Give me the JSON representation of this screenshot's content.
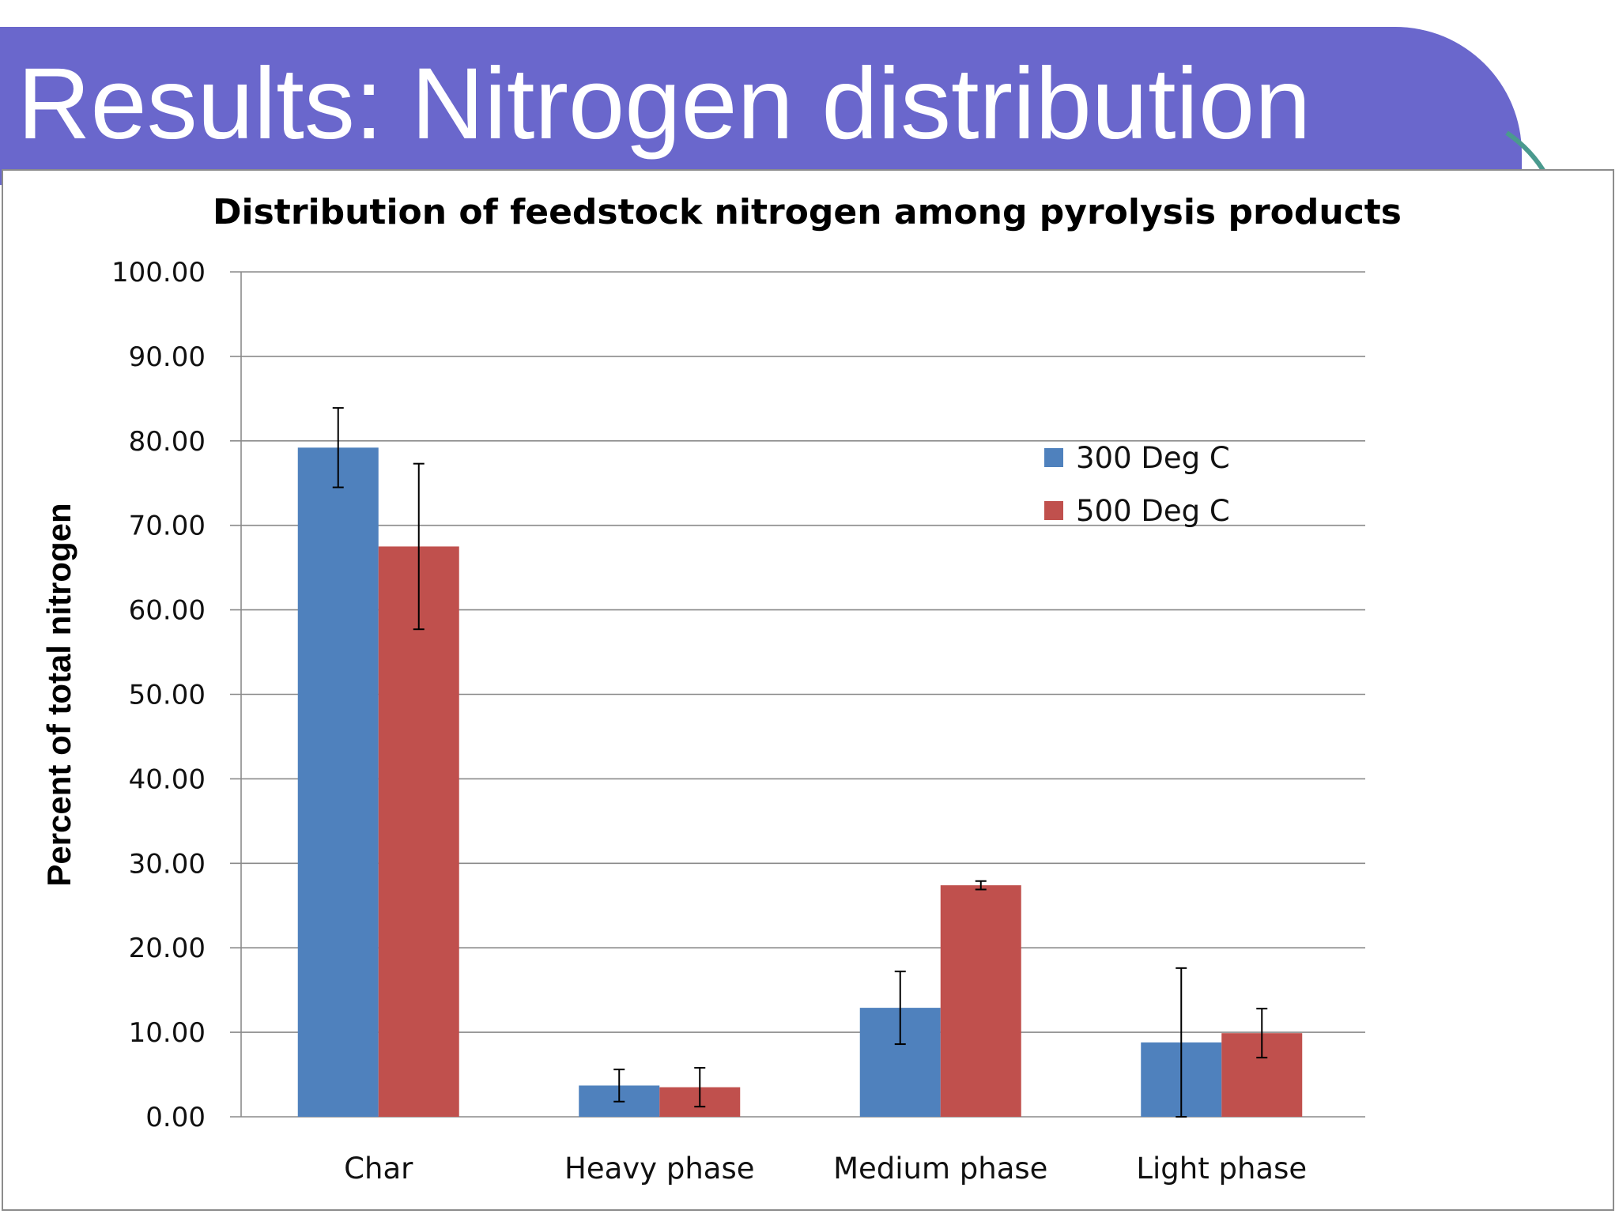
{
  "slide": {
    "title": "Results: Nitrogen distribution",
    "banner_color": "#6a67cc",
    "accent_color": "#4a9a8e"
  },
  "chart_data": {
    "type": "bar",
    "title": "Distribution of feedstock nitrogen among pyrolysis products",
    "xlabel": "",
    "ylabel": "Percent of total nitrogen",
    "ylim": [
      0,
      100
    ],
    "ytick_step": 10,
    "ytick_labels": [
      "0.00",
      "10.00",
      "20.00",
      "30.00",
      "40.00",
      "50.00",
      "60.00",
      "70.00",
      "80.00",
      "90.00",
      "100.00"
    ],
    "grid": true,
    "legend_position": "top-right",
    "categories": [
      "Char",
      "Heavy phase",
      "Medium phase",
      "Light phase"
    ],
    "series": [
      {
        "name": "300 Deg C",
        "color": "#4f81bd",
        "values": [
          79.2,
          3.7,
          12.9,
          8.8
        ],
        "errors": [
          4.7,
          1.9,
          4.3,
          8.8
        ]
      },
      {
        "name": "500 Deg C",
        "color": "#c0504d",
        "values": [
          67.5,
          3.5,
          27.4,
          9.9
        ],
        "errors": [
          9.8,
          2.3,
          0.5,
          2.9
        ]
      }
    ]
  }
}
